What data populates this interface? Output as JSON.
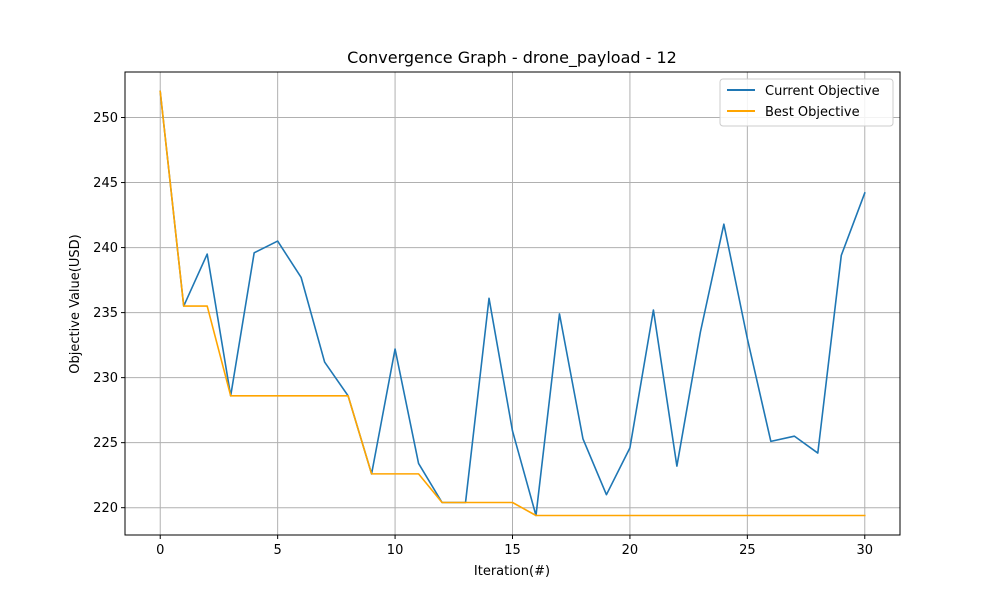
{
  "chart_data": {
    "type": "line",
    "title": "Convergence Graph - drone_payload - 12",
    "xlabel": "Iteration(#)",
    "ylabel": "Objective Value(USD)",
    "xlim": [
      -1.5,
      31.5
    ],
    "ylim": [
      217.9,
      253.5
    ],
    "xticks": [
      0,
      5,
      10,
      15,
      20,
      25,
      30
    ],
    "yticks": [
      220,
      225,
      230,
      235,
      240,
      245,
      250
    ],
    "grid": true,
    "legend_position": "top-right",
    "x": [
      0,
      1,
      2,
      3,
      4,
      5,
      6,
      7,
      8,
      9,
      10,
      11,
      12,
      13,
      14,
      15,
      16,
      17,
      18,
      19,
      20,
      21,
      22,
      23,
      24,
      25,
      26,
      27,
      28,
      29,
      30
    ],
    "series": [
      {
        "name": "Current Objective",
        "color": "#1f77b4",
        "values": [
          252.0,
          235.5,
          239.5,
          228.6,
          239.6,
          240.5,
          237.7,
          231.2,
          228.6,
          222.6,
          232.2,
          223.4,
          220.4,
          220.4,
          236.1,
          225.9,
          219.4,
          234.9,
          225.3,
          221.0,
          224.6,
          235.2,
          223.2,
          233.5,
          241.8,
          233.0,
          225.1,
          225.5,
          224.2,
          239.4,
          244.2
        ]
      },
      {
        "name": "Best Objective",
        "color": "#ffa500",
        "values": [
          252.0,
          235.5,
          235.5,
          228.6,
          228.6,
          228.6,
          228.6,
          228.6,
          228.6,
          222.6,
          222.6,
          222.6,
          220.4,
          220.4,
          220.4,
          220.4,
          219.4,
          219.4,
          219.4,
          219.4,
          219.4,
          219.4,
          219.4,
          219.4,
          219.4,
          219.4,
          219.4,
          219.4,
          219.4,
          219.4,
          219.4
        ]
      }
    ]
  }
}
